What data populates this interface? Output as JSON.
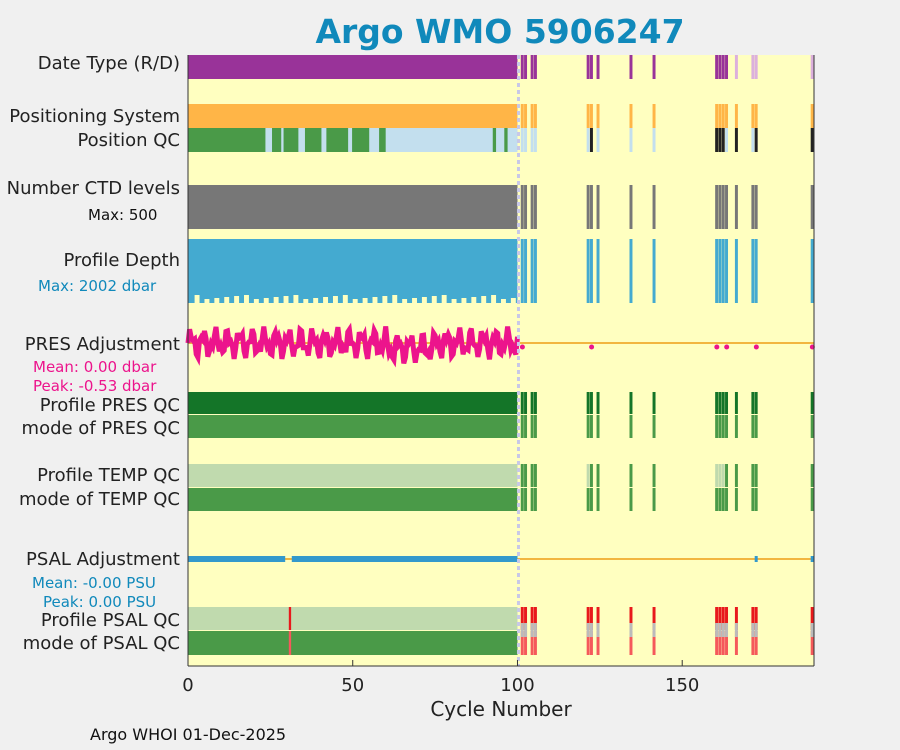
{
  "title": "Argo WMO 5906247",
  "footer": "Argo WHOI 01-Dec-2025",
  "labels": {
    "date_type": "Date Type (R/D)",
    "positioning_system": "Positioning System",
    "position_qc": "Position QC",
    "n_ctd": "Number CTD levels",
    "n_ctd_max": "Max: 500",
    "profile_depth": "Profile Depth",
    "profile_depth_max": "Max: 2002 dbar",
    "pres_adj": "PRES Adjustment",
    "pres_adj_mean": "Mean: 0.00 dbar",
    "pres_adj_peak": "Peak: -0.53 dbar",
    "profile_pres_qc": "Profile PRES QC",
    "mode_pres_qc": "mode of PRES QC",
    "profile_temp_qc": "Profile TEMP QC",
    "mode_temp_qc": "mode of TEMP QC",
    "psal_adj": "PSAL Adjustment",
    "psal_adj_mean": "Mean: -0.00 PSU",
    "psal_adj_peak": "Peak: 0.00 PSU",
    "profile_psal_qc": "Profile PSAL QC",
    "mode_psal_qc": "mode of PSAL QC"
  },
  "colors": {
    "background": "#ffffc0",
    "date_type": "#993399",
    "date_type_late": "#dcb0dc",
    "positioning": "#ffb547",
    "qc_good": "#4a9a48",
    "qc_dark_good": "#147528",
    "qc_light": "#c0daae",
    "qc_bad_red": "#e8191c",
    "qc_light_red": "#f5595b",
    "qc_gray": "#bbbbbb",
    "pos_qc_light": "#c3dfee",
    "pos_qc_black": "#222222",
    "ctd_gray": "#777777",
    "depth_blue": "#44aad0",
    "pres_adj": "#ec148c",
    "psal_adj": "#3399cc",
    "zero_line": "#f2b640",
    "dashed_line": "#c8c8e8",
    "title": "#1089bb",
    "max_text_depth": "#1089bb",
    "psal_text": "#1089bb"
  },
  "chart_data": {
    "type": "timeline",
    "title": "Argo WMO 5906247",
    "xlabel": "Cycle Number",
    "ylabel": "",
    "xlim": [
      0,
      190
    ],
    "xticks": [
      0,
      50,
      100,
      150
    ],
    "delayed_mode_cutoff_cycle": 100,
    "late_cycles": [
      101,
      102,
      104,
      105,
      121,
      122,
      124,
      134,
      141,
      160,
      161,
      162,
      163,
      166,
      171,
      172,
      189
    ],
    "missing_cycles_after_cutoff": "gaps between late cycles",
    "pres_adjustment": {
      "mean_dbar": 0.0,
      "peak_dbar": -0.53,
      "range_dbar": [
        -0.6,
        0.6
      ]
    },
    "psal_adjustment": {
      "mean_psu": -0.0,
      "peak_psu": 0.0
    },
    "n_ctd_max": 500,
    "profile_depth_max_dbar": 2002,
    "position_qc_dark_cycles": [
      24,
      28,
      34,
      40,
      48,
      55,
      61
    ]
  }
}
